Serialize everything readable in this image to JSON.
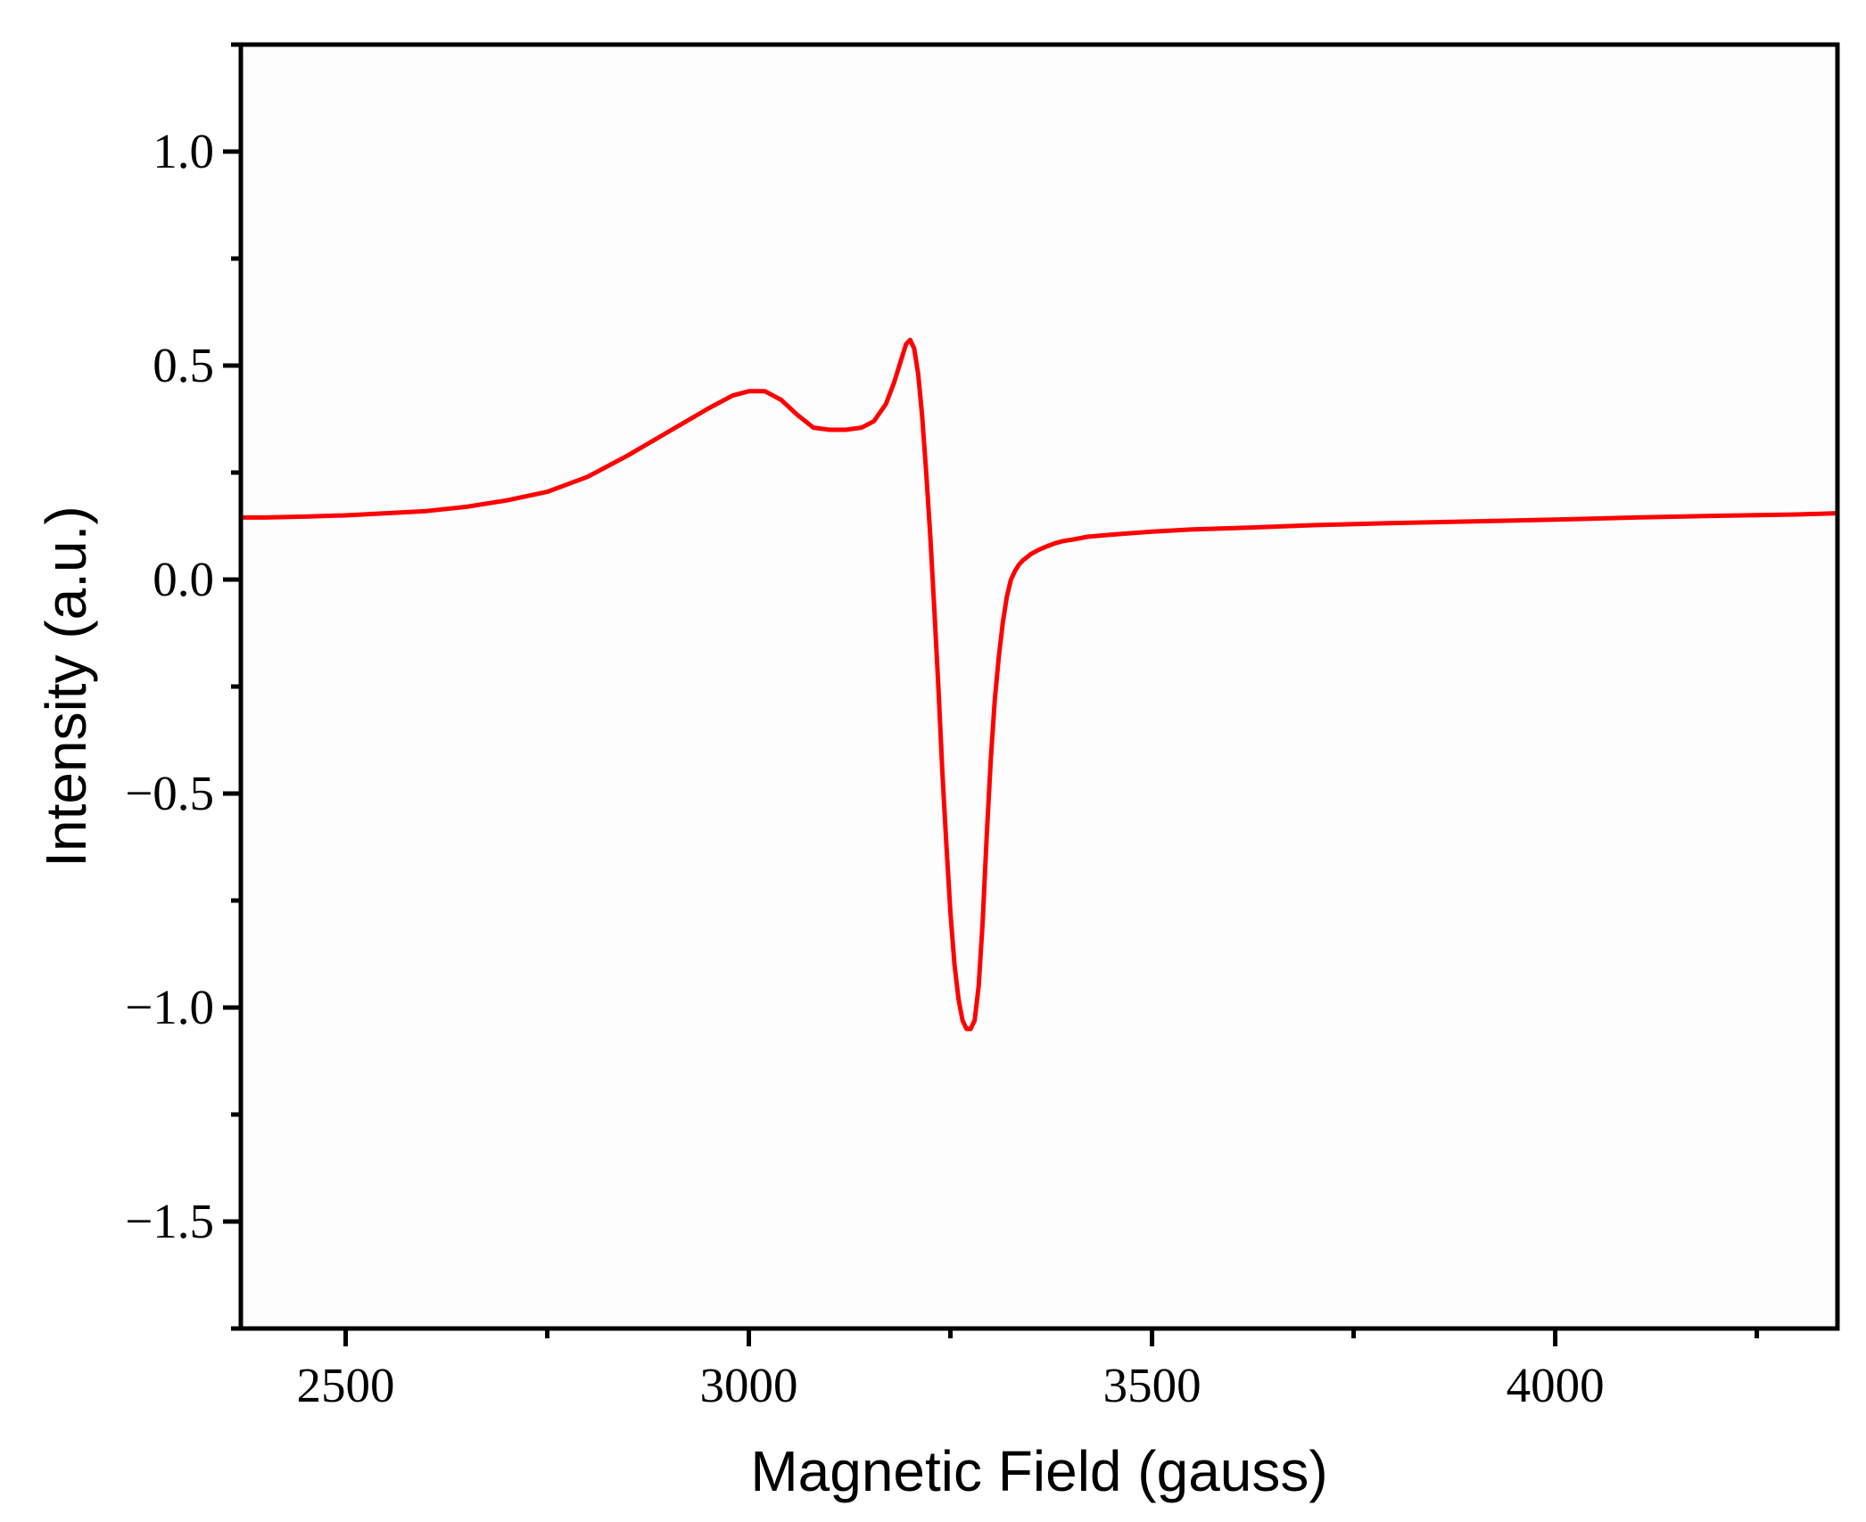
{
  "chart_data": {
    "type": "line",
    "title": "",
    "xlabel": "Magnetic Field (gauss)",
    "ylabel": "Intensity (a.u.)",
    "xlim": [
      2370,
      4350
    ],
    "ylim": [
      -1.75,
      1.25
    ],
    "x_ticks": [
      2500,
      3000,
      3500,
      4000
    ],
    "x_tick_labels": [
      "2500",
      "3000",
      "3500",
      "4000"
    ],
    "y_ticks": [
      -1.5,
      -1.0,
      -0.5,
      0.0,
      0.5,
      1.0
    ],
    "y_tick_labels": [
      "−1.5",
      "−1.0",
      "−0.5",
      "0.0",
      "0.5",
      "1.0"
    ],
    "grid": false,
    "legend": "none",
    "series": [
      {
        "color": "#ff0000",
        "x": [
          2370,
          2400,
          2450,
          2500,
          2550,
          2600,
          2650,
          2700,
          2750,
          2800,
          2850,
          2900,
          2950,
          2980,
          3000,
          3020,
          3040,
          3060,
          3080,
          3100,
          3120,
          3140,
          3155,
          3170,
          3180,
          3190,
          3195,
          3200,
          3205,
          3210,
          3215,
          3220,
          3225,
          3230,
          3235,
          3240,
          3245,
          3250,
          3255,
          3260,
          3265,
          3270,
          3275,
          3280,
          3285,
          3290,
          3295,
          3300,
          3305,
          3310,
          3315,
          3320,
          3325,
          3330,
          3335,
          3340,
          3350,
          3360,
          3370,
          3380,
          3390,
          3400,
          3420,
          3450,
          3500,
          3550,
          3600,
          3700,
          3800,
          3900,
          4000,
          4100,
          4200,
          4300,
          4350
        ],
        "y": [
          0.145,
          0.145,
          0.147,
          0.15,
          0.155,
          0.16,
          0.17,
          0.185,
          0.205,
          0.24,
          0.29,
          0.345,
          0.4,
          0.43,
          0.44,
          0.44,
          0.42,
          0.385,
          0.355,
          0.35,
          0.35,
          0.355,
          0.37,
          0.41,
          0.46,
          0.52,
          0.55,
          0.56,
          0.54,
          0.48,
          0.38,
          0.25,
          0.1,
          -0.07,
          -0.25,
          -0.45,
          -0.62,
          -0.78,
          -0.9,
          -0.98,
          -1.03,
          -1.05,
          -1.05,
          -1.03,
          -0.95,
          -0.8,
          -0.6,
          -0.42,
          -0.28,
          -0.18,
          -0.1,
          -0.04,
          0.0,
          0.02,
          0.035,
          0.045,
          0.06,
          0.07,
          0.078,
          0.085,
          0.09,
          0.093,
          0.1,
          0.105,
          0.112,
          0.117,
          0.12,
          0.127,
          0.132,
          0.136,
          0.14,
          0.145,
          0.149,
          0.152,
          0.155
        ]
      }
    ]
  }
}
